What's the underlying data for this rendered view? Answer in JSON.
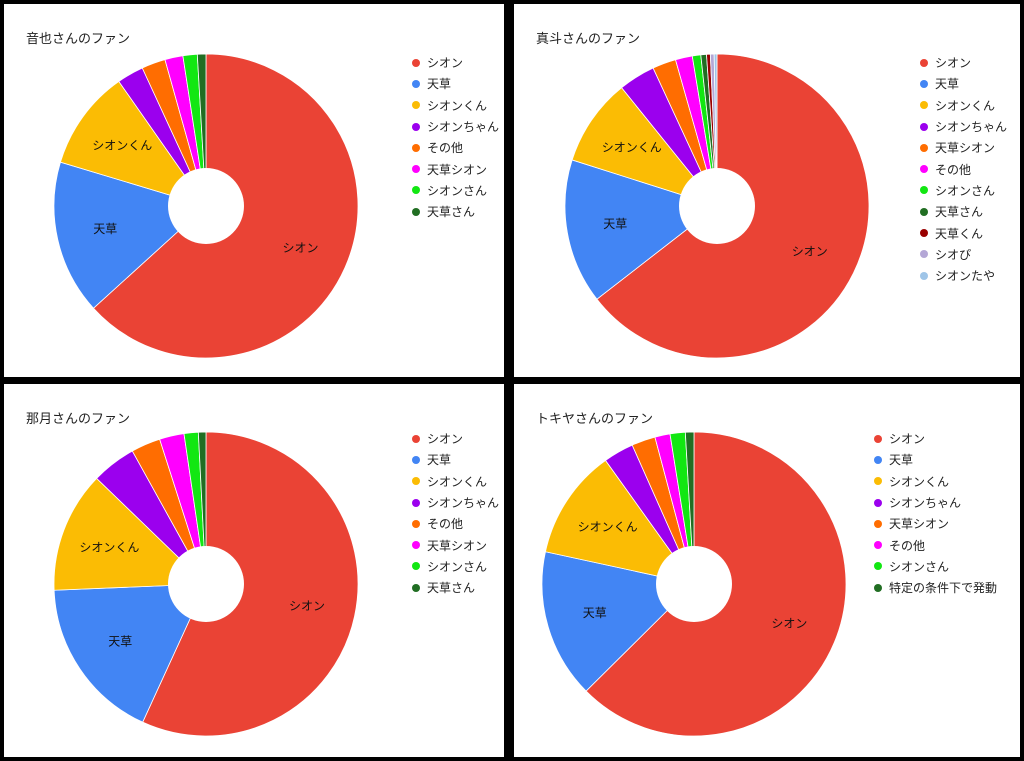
{
  "chart_data": [
    {
      "type": "pie",
      "title": "音也さんのファン",
      "categories": [
        "シオン",
        "天草",
        "シオンくん",
        "シオンちゃん",
        "その他",
        "天草シオン",
        "シオンさん",
        "天草さん"
      ],
      "values": [
        62.5,
        16.2,
        10.5,
        2.8,
        2.5,
        1.9,
        1.5,
        0.9
      ],
      "colors": [
        "#ea4335",
        "#4285f4",
        "#fbbc04",
        "#9b00ee",
        "#ff6d01",
        "#ff00ff",
        "#12e712",
        "#216e23"
      ],
      "slice_labels": [
        "シオン",
        "天草",
        "シオンくん",
        "",
        "",
        "",
        "",
        ""
      ],
      "donut": true,
      "legend_position": "right"
    },
    {
      "type": "pie",
      "title": "真斗さんのファン",
      "categories": [
        "シオン",
        "天草",
        "シオンくん",
        "シオンちゃん",
        "天草シオン",
        "その他",
        "シオンさん",
        "天草さん",
        "天草くん",
        "シオぴ",
        "シオンたや"
      ],
      "values": [
        64.5,
        15.4,
        9.3,
        3.9,
        2.5,
        1.8,
        0.9,
        0.6,
        0.4,
        0.4,
        0.3
      ],
      "colors": [
        "#ea4335",
        "#4285f4",
        "#fbbc04",
        "#9b00ee",
        "#ff6d01",
        "#ff00ff",
        "#12e712",
        "#216e23",
        "#990000",
        "#b4a7d6",
        "#9fc5e8"
      ],
      "slice_labels": [
        "シオン",
        "天草",
        "シオンくん",
        "",
        "",
        "",
        "",
        "",
        "",
        "",
        ""
      ],
      "donut": true,
      "legend_position": "right"
    },
    {
      "type": "pie",
      "title": "那月さんのファン",
      "categories": [
        "シオン",
        "天草",
        "シオンくん",
        "シオンちゃん",
        "その他",
        "天草シオン",
        "シオンさん",
        "天草さん"
      ],
      "values": [
        56.5,
        17.4,
        12.8,
        4.7,
        3.1,
        2.6,
        1.5,
        0.8
      ],
      "colors": [
        "#ea4335",
        "#4285f4",
        "#fbbc04",
        "#9b00ee",
        "#ff6d01",
        "#ff00ff",
        "#12e712",
        "#216e23"
      ],
      "slice_labels": [
        "シオン",
        "天草",
        "シオンくん",
        "",
        "",
        "",
        "",
        ""
      ],
      "donut": true,
      "legend_position": "right"
    },
    {
      "type": "pie",
      "title": "トキヤさんのファン",
      "categories": [
        "シオン",
        "天草",
        "シオンくん",
        "シオンちゃん",
        "天草シオン",
        "その他",
        "シオンさん",
        "特定の条件下で発動"
      ],
      "values": [
        62.0,
        15.7,
        11.6,
        3.2,
        2.5,
        1.6,
        1.6,
        0.9
      ],
      "colors": [
        "#ea4335",
        "#4285f4",
        "#fbbc04",
        "#9b00ee",
        "#ff6d01",
        "#ff00ff",
        "#12e712",
        "#216e23"
      ],
      "slice_labels": [
        "シオン",
        "天草",
        "シオンくん",
        "",
        "",
        "",
        "",
        ""
      ],
      "donut": true,
      "legend_position": "right"
    }
  ]
}
